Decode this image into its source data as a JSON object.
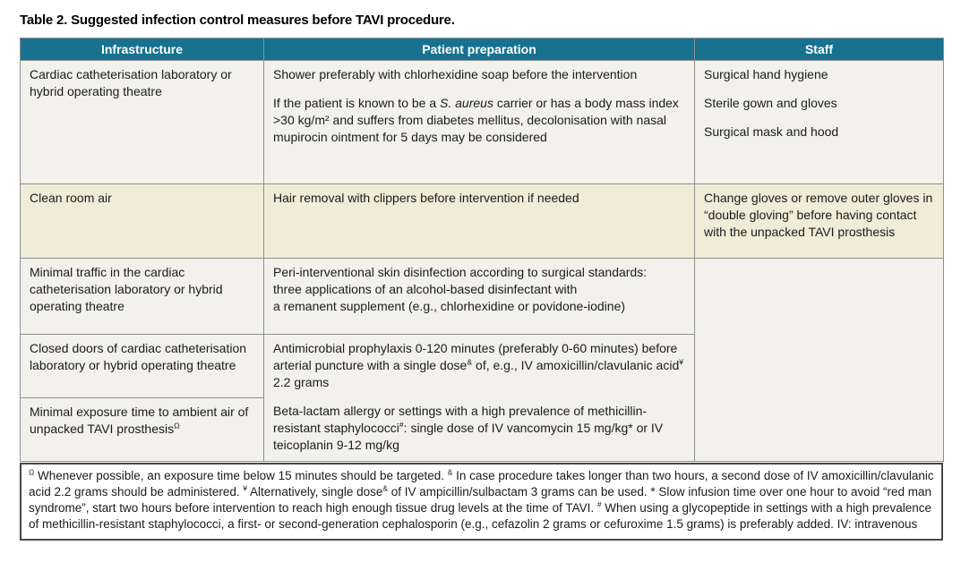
{
  "title": "Table 2. Suggested infection control measures before TAVI procedure.",
  "colors": {
    "header_bg": "#17718f",
    "header_text": "#ffffff",
    "row_bg": "#f2f1ec",
    "row_highlight_bg": "#efecd7",
    "border": "#8f8f8f"
  },
  "table": {
    "headers": [
      "Infrastructure",
      "Patient preparation",
      "Staff"
    ],
    "rows": [
      {
        "infrastructure": [
          [
            {
              "t": "Cardiac catheterisation laboratory or hybrid operating theatre"
            }
          ]
        ],
        "patient_preparation": [
          [
            {
              "t": "Shower preferably with chlorhexidine soap before the intervention"
            }
          ],
          [
            {
              "t": "If the patient is known to be a "
            },
            {
              "t": "S. aureus",
              "s": "i"
            },
            {
              "t": " carrier or has a body mass index >30 kg/m² and suffers from diabetes mellitus, decolonisation with nasal mupirocin ointment for 5 days may be considered"
            }
          ]
        ],
        "staff": [
          [
            {
              "t": "Surgical hand hygiene"
            }
          ],
          [
            {
              "t": "Sterile gown and gloves"
            }
          ],
          [
            {
              "t": "Surgical mask and hood"
            }
          ]
        ]
      },
      {
        "infrastructure": [
          [
            {
              "t": "Clean room air"
            }
          ]
        ],
        "patient_preparation": [
          [
            {
              "t": "Hair removal with clippers before intervention if needed"
            }
          ]
        ],
        "staff": [
          [
            {
              "t": "Change gloves or remove outer gloves in “double gloving” before having contact with the unpacked TAVI prosthesis"
            }
          ]
        ]
      },
      {
        "infrastructure": [
          [
            {
              "t": "Minimal traffic in the cardiac catheterisation laboratory or hybrid operating theatre"
            }
          ]
        ],
        "patient_preparation": [
          [
            {
              "t": "Peri-interventional skin disinfection according to surgical standards:\nthree applications of an alcohol-based disinfectant with\na remanent supplement (e.g., chlorhexidine or povidone-iodine)"
            }
          ]
        ],
        "staff": [
          [
            {
              "t": ""
            }
          ]
        ]
      },
      {
        "infrastructure": [
          [
            {
              "t": "Closed doors of cardiac catheterisation laboratory or hybrid operating theatre"
            }
          ]
        ],
        "patient_preparation": [
          [
            {
              "t": "Antimicrobial prophylaxis 0-120 minutes (preferably 0-60 minutes) before arterial puncture with a single dose"
            },
            {
              "t": "&",
              "s": "sup"
            },
            {
              "t": " of, e.g., IV amoxicillin/clavulanic acid"
            },
            {
              "t": "¥",
              "s": "sup"
            },
            {
              "t": " 2.2 grams"
            }
          ],
          [
            {
              "t": "Beta-lactam allergy or settings with a high prevalence of methicillin-resistant staphylococci"
            },
            {
              "t": "#",
              "s": "sup"
            },
            {
              "t": ": single dose of IV vancomycin 15 mg/kg* or IV teicoplanin 9-12 mg/kg"
            }
          ]
        ]
      },
      {
        "infrastructure": [
          [
            {
              "t": "Minimal exposure time to ambient air of unpacked TAVI prosthesis"
            },
            {
              "t": "Ω",
              "s": "sup"
            }
          ]
        ]
      }
    ]
  },
  "footnote": [
    [
      {
        "t": "Ω",
        "s": "sup"
      },
      {
        "t": " Whenever possible, an exposure time below 15 minutes should be targeted. "
      },
      {
        "t": "&",
        "s": "sup"
      },
      {
        "t": " In case procedure takes longer than two hours, a second dose of IV amoxicillin/clavulanic acid 2.2 grams should be administered. "
      },
      {
        "t": "¥",
        "s": "sup"
      },
      {
        "t": " Alternatively, single dose"
      },
      {
        "t": "&",
        "s": "sup"
      },
      {
        "t": " of IV ampicillin/sulbactam 3 grams can be used. * Slow infusion time over one hour to avoid “red man syndrome”, start two hours before intervention to reach high enough tissue drug levels at the time of TAVI. "
      },
      {
        "t": "#",
        "s": "sup"
      },
      {
        "t": " When using a glycopeptide in settings with a high prevalence of methicillin-resistant staphylococci, a first- or second-generation cephalosporin (e.g., cefazolin 2 grams or cefuroxime 1.5 grams) is preferably added. IV: intravenous"
      }
    ]
  ]
}
